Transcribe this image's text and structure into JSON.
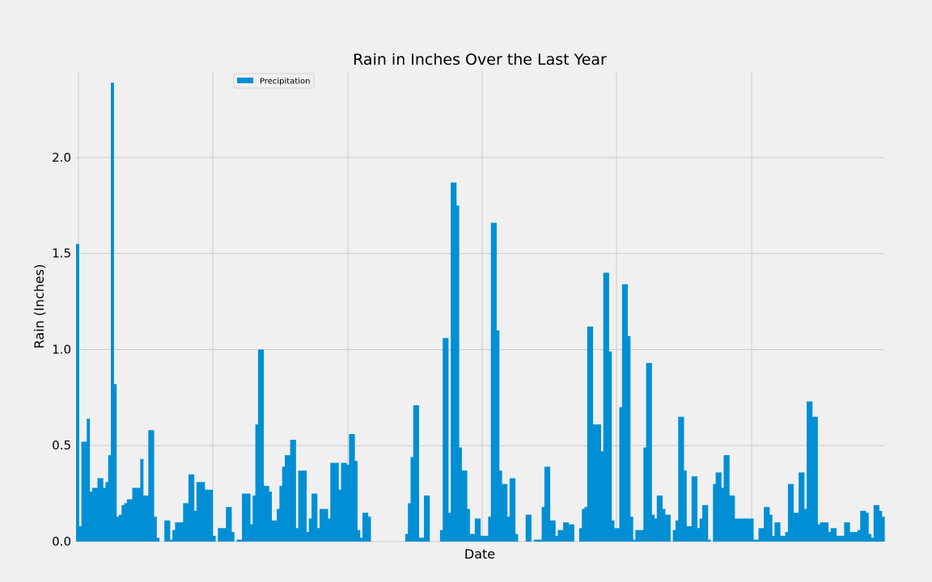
{
  "chart_data": {
    "type": "bar",
    "title": "Rain in Inches Over the Last Year",
    "xlabel": "Date",
    "ylabel": "Rain (Inches)",
    "ylim": [
      0,
      2.45
    ],
    "yticks": [
      "0.0",
      "0.5",
      "1.0",
      "1.5",
      "2.0"
    ],
    "ytick_values": [
      0,
      0.5,
      1.0,
      1.5,
      2.0
    ],
    "grid": true,
    "legend_position": "top-center",
    "color": "#008fd5",
    "series": [
      {
        "name": "Precipitation",
        "values": [
          1.55,
          0.08,
          0.52,
          0.52,
          0.64,
          0.26,
          0.28,
          0.28,
          0.33,
          0.33,
          0.28,
          0.31,
          0.45,
          2.39,
          0.82,
          0.13,
          0.14,
          0.19,
          0.2,
          0.22,
          0.22,
          0.28,
          0.28,
          0.28,
          0.43,
          0.24,
          0.24,
          0.58,
          0.58,
          0.13,
          0.02,
          0.0,
          0.0,
          0.11,
          0.11,
          0.01,
          0.06,
          0.1,
          0.1,
          0.1,
          0.2,
          0.2,
          0.35,
          0.35,
          0.16,
          0.31,
          0.31,
          0.31,
          0.27,
          0.27,
          0.27,
          0.03,
          0.0,
          0.07,
          0.07,
          0.07,
          0.18,
          0.18,
          0.05,
          0.0,
          0.01,
          0.01,
          0.25,
          0.25,
          0.25,
          0.09,
          0.24,
          0.61,
          1.0,
          1.0,
          0.29,
          0.29,
          0.26,
          0.11,
          0.11,
          0.17,
          0.29,
          0.39,
          0.45,
          0.45,
          0.53,
          0.53,
          0.07,
          0.37,
          0.37,
          0.37,
          0.05,
          0.12,
          0.25,
          0.25,
          0.07,
          0.17,
          0.17,
          0.17,
          0.12,
          0.41,
          0.41,
          0.41,
          0.27,
          0.41,
          0.41,
          0.4,
          0.56,
          0.56,
          0.42,
          0.06,
          0.02,
          0.15,
          0.15,
          0.13,
          0.0,
          0.0,
          0.0,
          0.0,
          0.0,
          0.0,
          0.0,
          0.0,
          0.0,
          0.0,
          0.0,
          0.0,
          0.0,
          0.04,
          0.2,
          0.44,
          0.71,
          0.71,
          0.02,
          0.02,
          0.24,
          0.24,
          0.0,
          0.0,
          0.0,
          0.0,
          0.06,
          1.06,
          1.06,
          0.15,
          1.87,
          1.87,
          1.75,
          0.49,
          0.37,
          0.37,
          0.17,
          0.04,
          0.04,
          0.12,
          0.12,
          0.03,
          0.03,
          0.03,
          0.13,
          1.66,
          1.66,
          1.1,
          0.37,
          0.3,
          0.3,
          0.13,
          0.33,
          0.33,
          0.04,
          0.0,
          0.0,
          0.0,
          0.14,
          0.14,
          0.0,
          0.01,
          0.01,
          0.01,
          0.18,
          0.39,
          0.39,
          0.11,
          0.11,
          0.03,
          0.06,
          0.06,
          0.1,
          0.1,
          0.09,
          0.09,
          0.0,
          0.0,
          0.07,
          0.17,
          0.18,
          1.12,
          1.12,
          0.61,
          0.61,
          0.61,
          0.47,
          1.4,
          1.4,
          0.99,
          0.11,
          0.07,
          0.07,
          0.7,
          1.34,
          1.34,
          1.07,
          0.13,
          0.01,
          0.06,
          0.06,
          0.06,
          0.49,
          0.93,
          0.93,
          0.14,
          0.12,
          0.24,
          0.24,
          0.17,
          0.14,
          0.14,
          0.0,
          0.06,
          0.11,
          0.65,
          0.65,
          0.37,
          0.08,
          0.08,
          0.34,
          0.34,
          0.07,
          0.12,
          0.19,
          0.19,
          0.01,
          0.0,
          0.3,
          0.36,
          0.36,
          0.28,
          0.45,
          0.45,
          0.24,
          0.24,
          0.12,
          0.12,
          0.12,
          0.12,
          0.12,
          0.12,
          0.12,
          0.01,
          0.01,
          0.07,
          0.07,
          0.18,
          0.18,
          0.14,
          0.03,
          0.1,
          0.1,
          0.03,
          0.03,
          0.05,
          0.3,
          0.3,
          0.15,
          0.15,
          0.36,
          0.36,
          0.17,
          0.73,
          0.73,
          0.65,
          0.65,
          0.09,
          0.1,
          0.1,
          0.1,
          0.05,
          0.07,
          0.07,
          0.03,
          0.03,
          0.03,
          0.1,
          0.1,
          0.05,
          0.05,
          0.05,
          0.06,
          0.16,
          0.16,
          0.15,
          0.04,
          0.02,
          0.19,
          0.19,
          0.16,
          0.13
        ]
      }
    ]
  }
}
